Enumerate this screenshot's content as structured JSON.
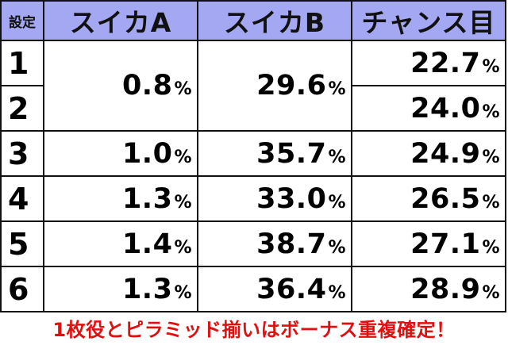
{
  "table": {
    "headers": [
      "設定",
      "スイカA",
      "スイカB",
      "チャンス目"
    ],
    "rows": [
      {
        "setting": "1",
        "suika_a": "0.8",
        "suika_b": "29.6",
        "chance": "22.7"
      },
      {
        "setting": "2",
        "suika_a": "0.8",
        "suika_b": "29.6",
        "chance": "24.0"
      },
      {
        "setting": "3",
        "suika_a": "1.0",
        "suika_b": "35.7",
        "chance": "24.9"
      },
      {
        "setting": "4",
        "suika_a": "1.3",
        "suika_b": "33.0",
        "chance": "26.5"
      },
      {
        "setting": "5",
        "suika_a": "1.4",
        "suika_b": "38.7",
        "chance": "27.1"
      },
      {
        "setting": "6",
        "suika_a": "1.3",
        "suika_b": "36.4",
        "chance": "28.9"
      }
    ],
    "percent_sign": "%"
  },
  "footer_note": "1枚役とピラミッド揃いはボーナス重複確定！",
  "colors": {
    "header_bg": "#a4a8f2",
    "footer_text": "#e01010"
  }
}
